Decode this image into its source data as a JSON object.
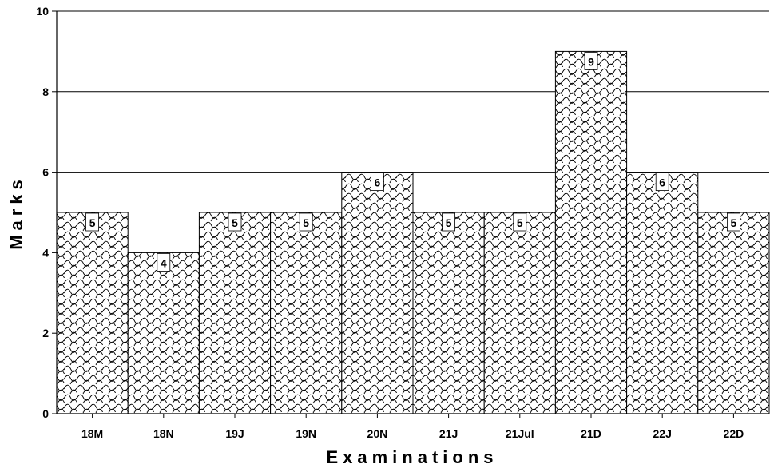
{
  "chart_data": {
    "type": "bar",
    "categories": [
      "18M",
      "18N",
      "19J",
      "19N",
      "20N",
      "21J",
      "21Jul",
      "21D",
      "22J",
      "22D"
    ],
    "values": [
      5,
      4,
      5,
      5,
      6,
      5,
      5,
      9,
      6,
      5
    ],
    "xlabel": "Examinations",
    "ylabel": "Marks",
    "ylim": [
      0,
      10
    ],
    "yticks": [
      0,
      2,
      4,
      6,
      8,
      10
    ],
    "grid": true,
    "fill_pattern": "wave",
    "colors": {
      "bar_fill": "#ffffff",
      "pattern_stroke": "#000000",
      "gridline": "#000000"
    }
  }
}
